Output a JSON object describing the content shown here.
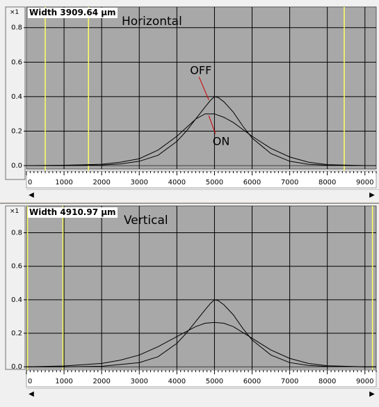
{
  "chart_data": [
    {
      "type": "line",
      "title": "Horizontal",
      "width_label": "Width 3909.64 µm",
      "y_multiplier": "×1",
      "xlim": [
        0,
        9300
      ],
      "ylim": [
        -0.02,
        0.92
      ],
      "y_ticks": [
        "0.0",
        "0.2",
        "0.4",
        "0.6",
        "0.8"
      ],
      "y_tick_values": [
        0.0,
        0.2,
        0.4,
        0.6,
        0.8
      ],
      "x_ticks": [
        "0",
        "1000",
        "2000",
        "3000",
        "4000",
        "5000",
        "6000",
        "7000",
        "8000",
        "9000"
      ],
      "x_tick_values": [
        0,
        1000,
        2000,
        3000,
        4000,
        5000,
        6000,
        7000,
        8000,
        9000
      ],
      "marker_lines_x": [
        500,
        1650,
        8450
      ],
      "annotations": [
        {
          "text": "OFF",
          "x": 4350,
          "y": 0.53,
          "arrow_to": [
            4850,
            0.38
          ]
        },
        {
          "text": "ON",
          "x": 4950,
          "y": 0.12,
          "arrow_to": [
            4850,
            0.29
          ]
        }
      ],
      "grid": true,
      "background_color": "#a8a8a8",
      "marker_color": "#ffff66",
      "series": [
        {
          "name": "OFF",
          "x": [
            0,
            1000,
            2000,
            2500,
            3000,
            3500,
            4000,
            4250,
            4500,
            4750,
            4900,
            5000,
            5100,
            5250,
            5500,
            5750,
            6000,
            6500,
            7000,
            7500,
            8000,
            9000,
            9300
          ],
          "y": [
            0.0,
            0.0,
            0.003,
            0.01,
            0.025,
            0.06,
            0.14,
            0.2,
            0.27,
            0.34,
            0.38,
            0.4,
            0.395,
            0.37,
            0.31,
            0.23,
            0.16,
            0.07,
            0.025,
            0.008,
            0.002,
            0.0,
            0.0
          ]
        },
        {
          "name": "ON",
          "x": [
            0,
            1000,
            2000,
            2500,
            3000,
            3500,
            4000,
            4250,
            4500,
            4750,
            5000,
            5250,
            5500,
            5750,
            6000,
            6500,
            7000,
            7500,
            8000,
            9000,
            9300
          ],
          "y": [
            0.0,
            0.002,
            0.008,
            0.02,
            0.04,
            0.09,
            0.17,
            0.22,
            0.27,
            0.3,
            0.3,
            0.28,
            0.25,
            0.21,
            0.17,
            0.1,
            0.05,
            0.02,
            0.006,
            0.0,
            0.0
          ]
        }
      ]
    },
    {
      "type": "line",
      "title": "Vertical",
      "width_label": "Width 4910.97 µm",
      "y_multiplier": "×1",
      "xlim": [
        0,
        9300
      ],
      "ylim": [
        -0.02,
        0.96
      ],
      "y_ticks": [
        "0.0",
        "0.2",
        "0.4",
        "0.6",
        "0.8"
      ],
      "y_tick_values": [
        0.0,
        0.2,
        0.4,
        0.6,
        0.8
      ],
      "x_ticks": [
        "0",
        "1000",
        "2000",
        "3000",
        "4000",
        "5000",
        "6000",
        "7000",
        "8000",
        "9000"
      ],
      "x_tick_values": [
        0,
        1000,
        2000,
        3000,
        4000,
        5000,
        6000,
        7000,
        8000,
        9000
      ],
      "marker_lines_x": [
        30,
        970,
        9200
      ],
      "annotations": [],
      "grid": true,
      "background_color": "#a8a8a8",
      "marker_color": "#ffff66",
      "series": [
        {
          "name": "OFF",
          "x": [
            0,
            1000,
            2000,
            3000,
            3500,
            4000,
            4250,
            4500,
            4750,
            4900,
            5000,
            5100,
            5250,
            5500,
            5750,
            6000,
            6500,
            7000,
            7500,
            8000,
            9000,
            9300
          ],
          "y": [
            0.0,
            0.0,
            0.003,
            0.025,
            0.06,
            0.14,
            0.2,
            0.27,
            0.34,
            0.38,
            0.4,
            0.395,
            0.37,
            0.31,
            0.23,
            0.16,
            0.07,
            0.025,
            0.008,
            0.002,
            0.0,
            0.0
          ]
        },
        {
          "name": "ON",
          "x": [
            0,
            1000,
            2000,
            2500,
            3000,
            3500,
            4000,
            4250,
            4500,
            4750,
            5000,
            5250,
            5500,
            6000,
            6500,
            7000,
            7500,
            8000,
            9000,
            9300
          ],
          "y": [
            0.0,
            0.005,
            0.02,
            0.04,
            0.07,
            0.12,
            0.18,
            0.21,
            0.24,
            0.26,
            0.265,
            0.26,
            0.24,
            0.17,
            0.1,
            0.05,
            0.02,
            0.006,
            0.0,
            0.0
          ]
        }
      ]
    }
  ]
}
